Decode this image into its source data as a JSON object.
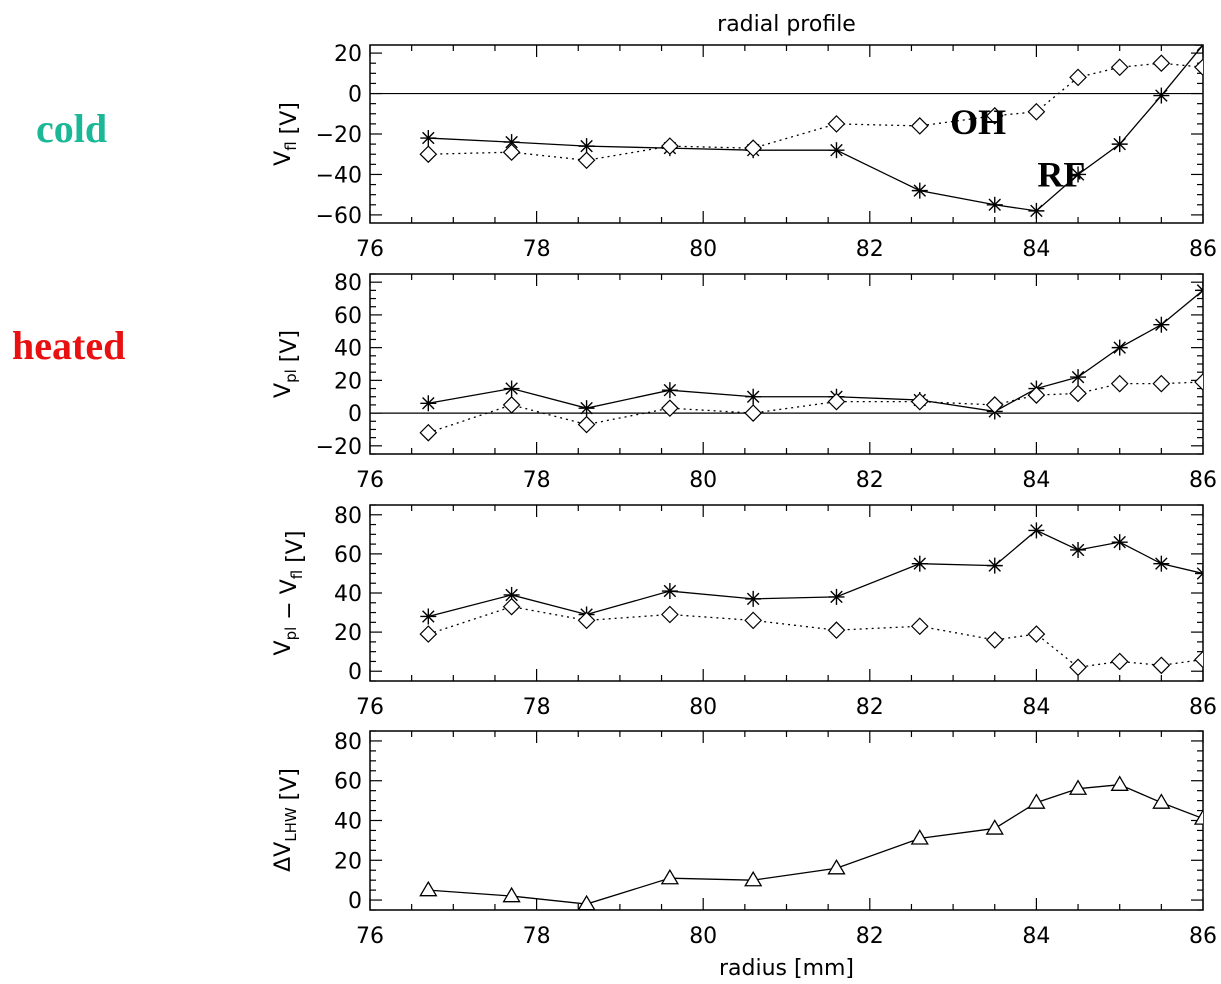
{
  "side_labels": {
    "cold": {
      "text": "cold",
      "color": "#1ab896"
    },
    "heated": {
      "text": "heated",
      "color": "#e81010"
    }
  },
  "chart_data": [
    {
      "type": "line",
      "title": "radial profile",
      "ylabel": "V_fl [V]",
      "xlabel": "",
      "xlim": [
        76,
        86
      ],
      "ylim": [
        -64,
        24
      ],
      "x_ticks": [
        76,
        78,
        80,
        82,
        84,
        86
      ],
      "y_ticks": [
        -60,
        -40,
        -20,
        0,
        20
      ],
      "zero_line": true,
      "annotations": [
        {
          "text": "OH",
          "x": 83.3,
          "y": -14
        },
        {
          "text": "RF",
          "x": 84.3,
          "y": -40
        }
      ],
      "series": [
        {
          "name": "RF",
          "marker": "asterisk",
          "line": "solid",
          "x": [
            76.7,
            77.7,
            78.6,
            79.6,
            80.6,
            81.6,
            82.6,
            83.5,
            84.0,
            84.5,
            85.0,
            85.5,
            86.0
          ],
          "y": [
            -22,
            -24,
            -26,
            -27,
            -28,
            -28,
            -48,
            -55,
            -58,
            -40,
            -25,
            -1,
            24
          ]
        },
        {
          "name": "OH",
          "marker": "diamond",
          "line": "dotted",
          "x": [
            76.7,
            77.7,
            78.6,
            79.6,
            80.6,
            81.6,
            82.6,
            83.5,
            84.0,
            84.5,
            85.0,
            85.5,
            86.0
          ],
          "y": [
            -30,
            -29,
            -33,
            -26,
            -27,
            -15,
            -16,
            -11,
            -9,
            8,
            13,
            15,
            13
          ]
        }
      ]
    },
    {
      "type": "line",
      "title": "",
      "ylabel": "V_pl [V]",
      "xlabel": "",
      "xlim": [
        76,
        86
      ],
      "ylim": [
        -25,
        85
      ],
      "x_ticks": [
        76,
        78,
        80,
        82,
        84,
        86
      ],
      "y_ticks": [
        -20,
        0,
        20,
        40,
        60,
        80
      ],
      "zero_line": true,
      "annotations": [],
      "series": [
        {
          "name": "RF",
          "marker": "asterisk",
          "line": "solid",
          "x": [
            76.7,
            77.7,
            78.6,
            79.6,
            80.6,
            81.6,
            82.6,
            83.5,
            84.0,
            84.5,
            85.0,
            85.5,
            86.0
          ],
          "y": [
            6,
            15,
            3,
            14,
            10,
            10,
            8,
            1,
            15,
            22,
            40,
            54,
            75
          ]
        },
        {
          "name": "OH",
          "marker": "diamond",
          "line": "dotted",
          "x": [
            76.7,
            77.7,
            78.6,
            79.6,
            80.6,
            81.6,
            82.6,
            83.5,
            84.0,
            84.5,
            85.0,
            85.5,
            86.0
          ],
          "y": [
            -12,
            5,
            -7,
            3,
            0,
            7,
            7,
            5,
            11,
            12,
            18,
            18,
            19
          ]
        }
      ]
    },
    {
      "type": "line",
      "title": "",
      "ylabel": "V_pl − V_fl [V]",
      "xlabel": "",
      "xlim": [
        76,
        86
      ],
      "ylim": [
        -5,
        85
      ],
      "x_ticks": [
        76,
        78,
        80,
        82,
        84,
        86
      ],
      "y_ticks": [
        0,
        20,
        40,
        60,
        80
      ],
      "zero_line": false,
      "annotations": [],
      "series": [
        {
          "name": "RF",
          "marker": "asterisk",
          "line": "solid",
          "x": [
            76.7,
            77.7,
            78.6,
            79.6,
            80.6,
            81.6,
            82.6,
            83.5,
            84.0,
            84.5,
            85.0,
            85.5,
            86.0
          ],
          "y": [
            28,
            39,
            29,
            41,
            37,
            38,
            55,
            54,
            72,
            62,
            66,
            55,
            50
          ]
        },
        {
          "name": "OH",
          "marker": "diamond",
          "line": "dotted",
          "x": [
            76.7,
            77.7,
            78.6,
            79.6,
            80.6,
            81.6,
            82.6,
            83.5,
            84.0,
            84.5,
            85.0,
            85.5,
            86.0
          ],
          "y": [
            19,
            33,
            26,
            29,
            26,
            21,
            23,
            16,
            19,
            2,
            5,
            3,
            6
          ]
        }
      ]
    },
    {
      "type": "line",
      "title": "",
      "ylabel": "ΔV_LHW [V]",
      "xlabel": "radius [mm]",
      "xlim": [
        76,
        86
      ],
      "ylim": [
        -5,
        85
      ],
      "x_ticks": [
        76,
        78,
        80,
        82,
        84,
        86
      ],
      "y_ticks": [
        0,
        20,
        40,
        60,
        80
      ],
      "zero_line": false,
      "annotations": [],
      "series": [
        {
          "name": "",
          "marker": "triangle",
          "line": "solid",
          "x": [
            76.7,
            77.7,
            78.6,
            79.6,
            80.6,
            81.6,
            82.6,
            83.5,
            84.0,
            84.5,
            85.0,
            85.5,
            86.0
          ],
          "y": [
            5,
            2,
            -2,
            11,
            10,
            16,
            31,
            36,
            49,
            56,
            58,
            49,
            41
          ]
        }
      ]
    }
  ]
}
